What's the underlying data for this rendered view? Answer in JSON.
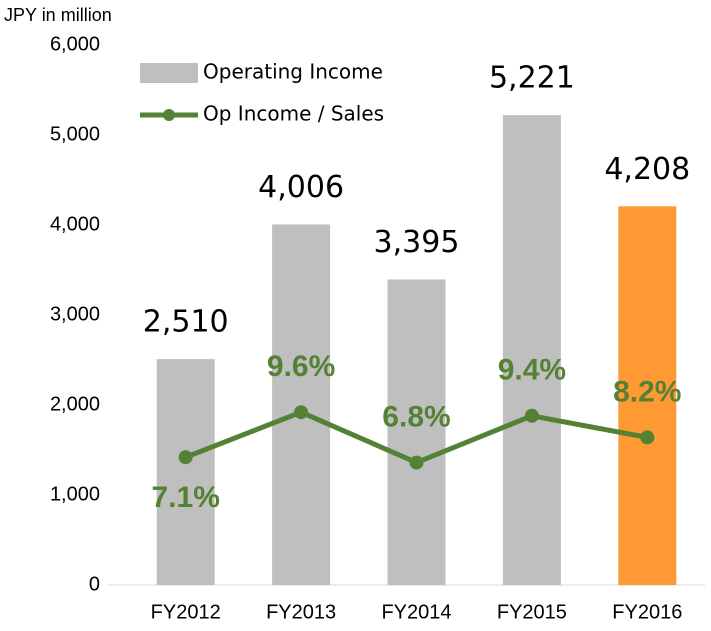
{
  "chart_data": {
    "type": "bar_line",
    "y_axis_label": "JPY in million",
    "categories": [
      "FY2012",
      "FY2013",
      "FY2014",
      "FY2015",
      "FY2016"
    ],
    "series": [
      {
        "name": "Operating Income",
        "type": "bar",
        "color": "#bfbfbf",
        "colors": [
          "#bfbfbf",
          "#bfbfbf",
          "#bfbfbf",
          "#bfbfbf",
          "#ff9933"
        ],
        "values": [
          2510,
          4006,
          3395,
          5221,
          4208
        ],
        "value_labels": [
          "2,510",
          "4,006",
          "3,395",
          "5,221",
          "4,208"
        ]
      },
      {
        "name": "Op Income / Sales",
        "type": "line",
        "axis": "y2",
        "color": "#548235",
        "values": [
          7.1,
          9.6,
          6.8,
          9.4,
          8.2
        ],
        "value_labels": [
          "7.1%",
          "9.6%",
          "6.8%",
          "9.4%",
          "8.2%"
        ]
      }
    ],
    "ylim": [
      0,
      6000
    ],
    "yticks": [
      {
        "value": 0,
        "label": "0"
      },
      {
        "value": 1000,
        "label": "1,000"
      },
      {
        "value": 2000,
        "label": "2,000"
      },
      {
        "value": 3000,
        "label": "3,000"
      },
      {
        "value": 4000,
        "label": "4,000"
      },
      {
        "value": 5000,
        "label": "5,000"
      },
      {
        "value": 6000,
        "label": "6,000"
      }
    ],
    "y2lim": [
      0,
      30
    ],
    "legend": "top-left"
  }
}
